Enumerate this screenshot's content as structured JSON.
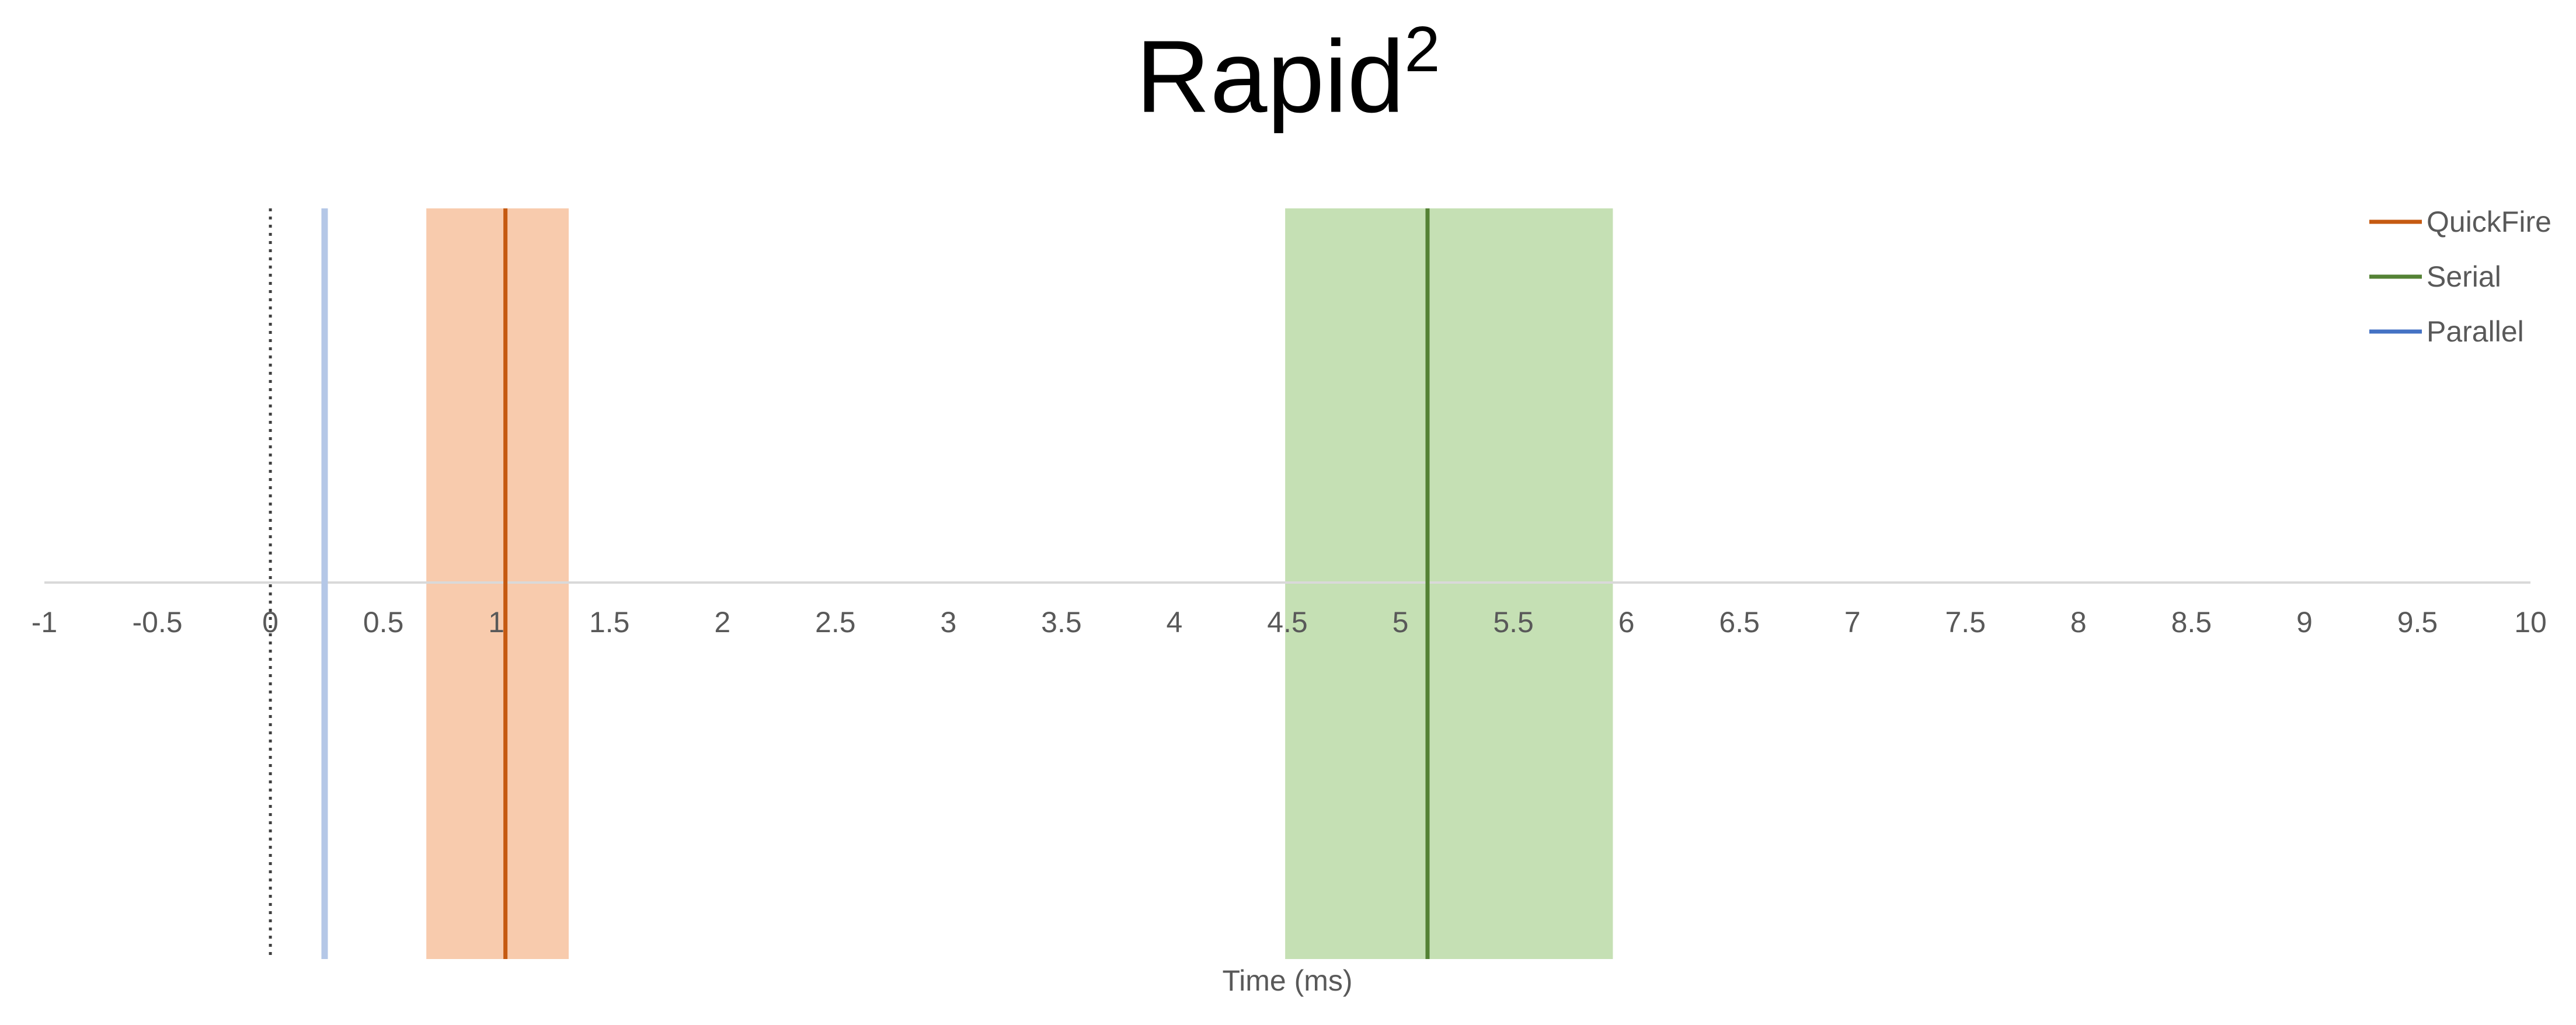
{
  "chart_data": {
    "type": "line",
    "title": {
      "base": "Rapid",
      "sup": "2"
    },
    "xlabel": "Time (ms)",
    "xlim": [
      -1,
      10
    ],
    "tick_step": 0.5,
    "tick_labels": [
      "-1",
      "-0.5",
      "0",
      "0.5",
      "1",
      "1.5",
      "2",
      "2.5",
      "3",
      "3.5",
      "4",
      "4.5",
      "5",
      "5.5",
      "6",
      "6.5",
      "7",
      "7.5",
      "8",
      "8.5",
      "9",
      "9.5",
      "10"
    ],
    "zero_line": {
      "x": 0,
      "style": "dotted",
      "color": "#404040"
    },
    "legend_position": "top-right",
    "series": [
      {
        "name": "QuickFire",
        "x": 1.04,
        "band": [
          0.69,
          1.32
        ],
        "color": "#C55A11",
        "band_color": "#F8CBAD"
      },
      {
        "name": "Serial",
        "x": 5.12,
        "band": [
          4.49,
          5.94
        ],
        "color": "#548235",
        "band_color": "#C5E0B4"
      },
      {
        "name": "Parallel",
        "x": 0.24,
        "band": null,
        "color": "#4472C4",
        "line_color": "#B4C7E7"
      }
    ],
    "colors": {
      "axis": "#D9D9D9",
      "tick_text": "#595959",
      "legend_text": "#595959",
      "title": "#000000"
    }
  }
}
